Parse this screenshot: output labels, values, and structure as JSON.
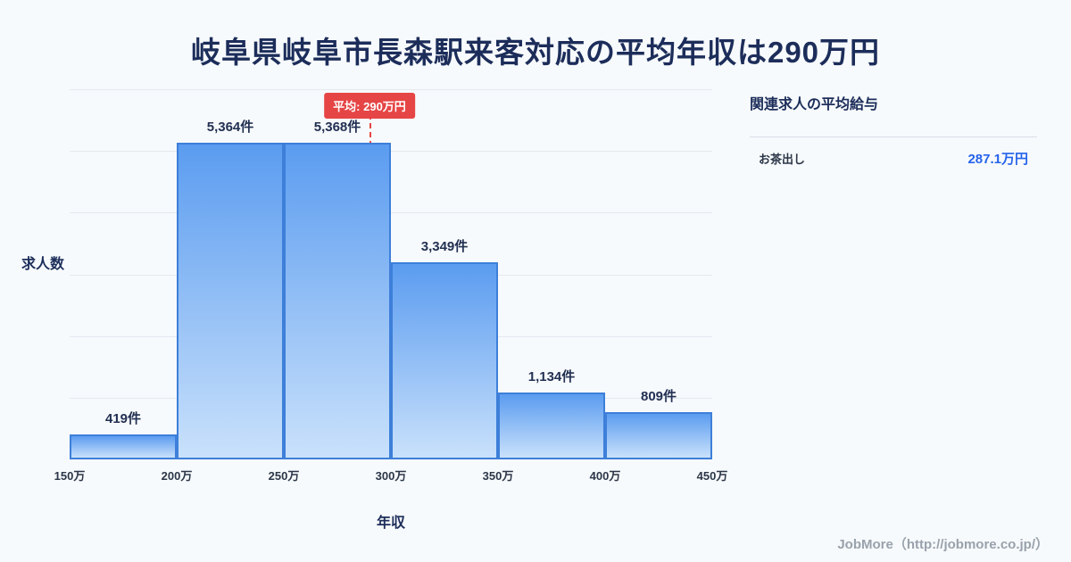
{
  "page": {
    "title": "岐阜県岐阜市長森駅来客対応の平均年収は290万円",
    "footer": "JobMore（http://jobmore.co.jp/）",
    "background": "#f7fafc"
  },
  "chart_data": {
    "type": "bar",
    "title": "岐阜県岐阜市長森駅来客対応の平均年収は290万円",
    "xlabel": "年収",
    "ylabel": "求人数",
    "categories": [
      "150万-200万",
      "200万-250万",
      "250万-300万",
      "300万-350万",
      "350万-400万",
      "400万-450万"
    ],
    "x_ticks": [
      "150万",
      "200万",
      "250万",
      "300万",
      "350万",
      "400万",
      "450万"
    ],
    "values": [
      419,
      5364,
      5368,
      3349,
      1134,
      809
    ],
    "bar_labels": [
      "419件",
      "5,364件",
      "5,368件",
      "3,349件",
      "1,134件",
      "809件"
    ],
    "ylim": [
      0,
      6000
    ],
    "grid": true,
    "legend": "none",
    "mean_line": {
      "label": "平均: 290万円",
      "x_value": 290,
      "x_range": [
        150,
        450
      ],
      "color": "#e64545"
    },
    "colors": {
      "bar_top": "#5b9cf0",
      "bar_bottom": "#c9e1fb",
      "bar_border": "#3d7fd9"
    }
  },
  "side_panel": {
    "heading": "関連求人の平均給与",
    "items": [
      {
        "label": "お茶出し",
        "value": "287.1万円"
      }
    ],
    "value_color": "#2563eb"
  }
}
